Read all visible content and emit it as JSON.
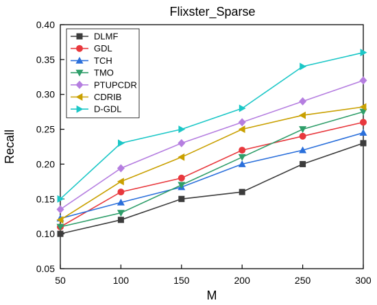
{
  "chart_data": {
    "type": "line",
    "title": "Flixster_Sparse",
    "xlabel": "M",
    "ylabel": "Recall",
    "x": [
      50,
      100,
      150,
      200,
      250,
      300
    ],
    "xlim": [
      50,
      300
    ],
    "ylim": [
      0.05,
      0.4
    ],
    "x_ticks": [
      "50",
      "100",
      "150",
      "200",
      "250",
      "300"
    ],
    "y_ticks": [
      "0.05",
      "0.10",
      "0.15",
      "0.20",
      "0.25",
      "0.30",
      "0.35",
      "0.40"
    ],
    "grid": false,
    "legend_position": "top-left",
    "series": [
      {
        "name": "DLMF",
        "color": "#3c3c3c",
        "marker": "square",
        "values": [
          0.1,
          0.12,
          0.15,
          0.16,
          0.2,
          0.23
        ]
      },
      {
        "name": "GDL",
        "color": "#e8383d",
        "marker": "circle",
        "values": [
          0.11,
          0.16,
          0.18,
          0.22,
          0.24,
          0.26
        ]
      },
      {
        "name": "TCH",
        "color": "#2a6fdb",
        "marker": "triangle-up",
        "values": [
          0.122,
          0.145,
          0.167,
          0.2,
          0.22,
          0.245
        ]
      },
      {
        "name": "TMO",
        "color": "#2f9e6a",
        "marker": "triangle-down",
        "values": [
          0.11,
          0.13,
          0.17,
          0.21,
          0.25,
          0.275
        ]
      },
      {
        "name": "PTUPCDR",
        "color": "#b57ee0",
        "marker": "diamond",
        "values": [
          0.135,
          0.194,
          0.23,
          0.26,
          0.29,
          0.32
        ]
      },
      {
        "name": "CDRIB",
        "color": "#c9a000",
        "marker": "triangle-left",
        "values": [
          0.12,
          0.175,
          0.21,
          0.25,
          0.27,
          0.282
        ]
      },
      {
        "name": "D-GDL",
        "color": "#1cc7c7",
        "marker": "triangle-right",
        "values": [
          0.15,
          0.23,
          0.25,
          0.28,
          0.34,
          0.36
        ]
      }
    ]
  }
}
